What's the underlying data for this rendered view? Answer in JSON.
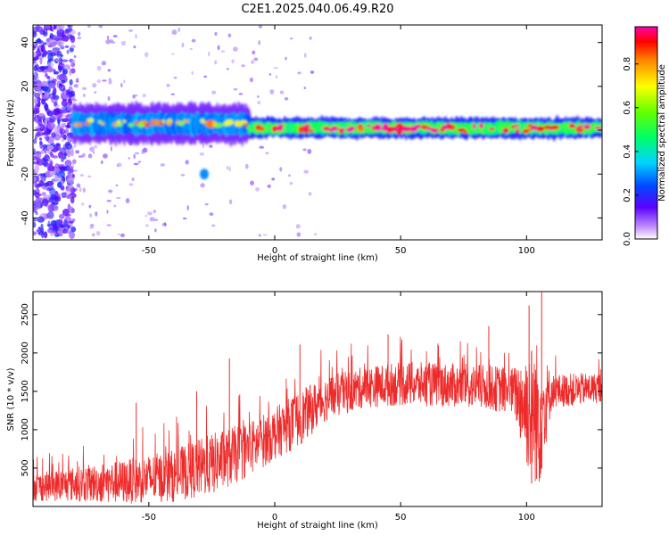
{
  "title": "C2E1.2025.040.06.49.R20",
  "chart_data": [
    {
      "type": "heatmap",
      "xlabel": "Height of straight line (km)",
      "ylabel": "Frequency (Hz)",
      "xlim": [
        -96,
        130
      ],
      "ylim": [
        -50,
        48
      ],
      "xticks": [
        -50,
        0,
        50,
        100
      ],
      "yticks": [
        -40,
        -20,
        0,
        20,
        40
      ],
      "colorbar": {
        "label": "Normalized spectral amplitude",
        "range": [
          0,
          0.97
        ],
        "ticks": [
          0.0,
          0.2,
          0.4,
          0.6,
          0.8
        ]
      },
      "features": [
        {
          "x_start": -80,
          "x_end": -10,
          "center_freq": 3,
          "width_hz": 10,
          "intensity": 0.35
        },
        {
          "x_start": -10,
          "x_end": 130,
          "center_freq": 1,
          "width_hz": 5,
          "intensity": 0.6
        },
        {
          "x_start": -96,
          "x_end": -80,
          "center_freq": 0,
          "width_hz": 96,
          "intensity": 0.12
        },
        {
          "x": -28,
          "freq": -20,
          "intensity": 0.3
        }
      ]
    },
    {
      "type": "line",
      "xlabel": "Height of straight line (km)",
      "ylabel": "SNR (10 * v/v)",
      "xlim": [
        -96,
        130
      ],
      "ylim": [
        0,
        2800
      ],
      "xticks": [
        -50,
        0,
        50,
        100
      ],
      "yticks": [
        500,
        1000,
        1500,
        2000,
        2500
      ],
      "series": [
        {
          "color": "#ee2b2b",
          "envelope": [
            {
              "x": -96,
              "mean": 250,
              "spread": 200
            },
            {
              "x": -80,
              "mean": 290,
              "spread": 250
            },
            {
              "x": -60,
              "mean": 320,
              "spread": 320
            },
            {
              "x": -40,
              "mean": 400,
              "spread": 380
            },
            {
              "x": -25,
              "mean": 550,
              "spread": 450
            },
            {
              "x": -10,
              "mean": 750,
              "spread": 400
            },
            {
              "x": 0,
              "mean": 950,
              "spread": 380
            },
            {
              "x": 10,
              "mean": 1150,
              "spread": 400
            },
            {
              "x": 20,
              "mean": 1400,
              "spread": 330
            },
            {
              "x": 35,
              "mean": 1550,
              "spread": 300
            },
            {
              "x": 50,
              "mean": 1600,
              "spread": 320
            },
            {
              "x": 70,
              "mean": 1580,
              "spread": 320
            },
            {
              "x": 85,
              "mean": 1550,
              "spread": 330
            },
            {
              "x": 95,
              "mean": 1500,
              "spread": 350
            },
            {
              "x": 100,
              "mean": 1300,
              "spread": 900
            },
            {
              "x": 105,
              "mean": 1200,
              "spread": 1100
            },
            {
              "x": 110,
              "mean": 1500,
              "spread": 250
            },
            {
              "x": 130,
              "mean": 1550,
              "spread": 220
            }
          ],
          "spikes": [
            {
              "x": -55,
              "y": 1350
            },
            {
              "x": -31,
              "y": 1500
            },
            {
              "x": -18,
              "y": 1930
            },
            {
              "x": 10,
              "y": 2110
            },
            {
              "x": 45,
              "y": 2240
            },
            {
              "x": 85,
              "y": 2350
            },
            {
              "x": 101,
              "y": 2620
            },
            {
              "x": 106,
              "y": 2790
            },
            {
              "x": 102,
              "y": 300
            },
            {
              "x": 104,
              "y": 360
            }
          ]
        }
      ]
    }
  ]
}
